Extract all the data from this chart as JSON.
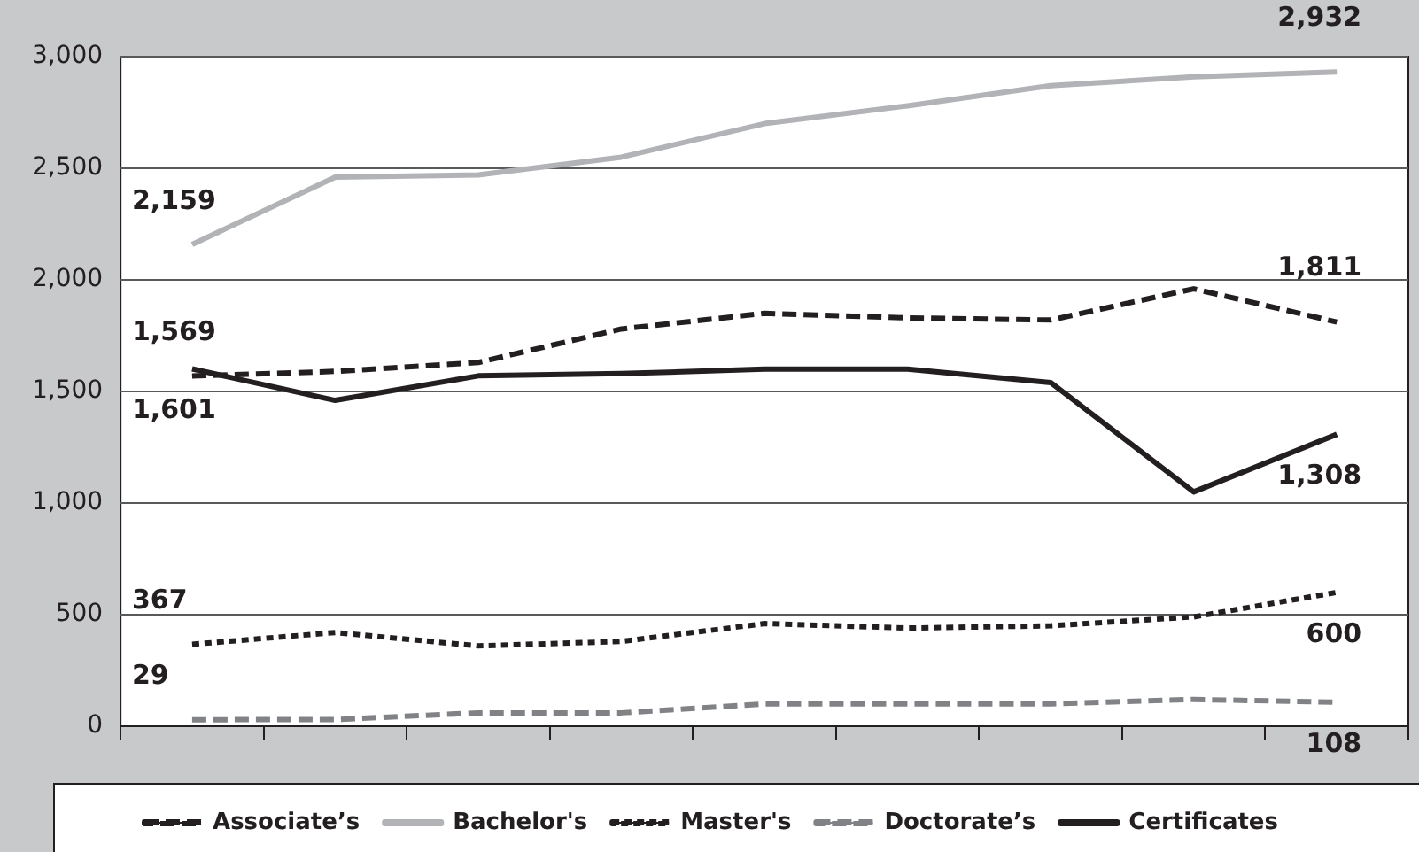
{
  "chart_data": {
    "type": "line",
    "categories": [
      null,
      null,
      null,
      null,
      null,
      null,
      null,
      null,
      null
    ],
    "ylim": [
      0,
      3000
    ],
    "yticks": [
      0,
      {
        "value": 500,
        "label": "500"
      },
      {
        "value": 1000,
        "label": "1,000"
      },
      {
        "value": 1500,
        "label": "1,500"
      },
      {
        "value": 2000,
        "label": "2,000"
      },
      {
        "value": 2500,
        "label": "2,500"
      },
      {
        "value": 3000,
        "label": "3,000"
      }
    ],
    "grid": "y",
    "legend": "bottom",
    "tick_labels": "y",
    "marker": "none",
    "series": [
      {
        "name": "Associate’s",
        "color": "#231f20",
        "line_style": "dashed",
        "values": [
          1569,
          1590,
          1630,
          1780,
          1850,
          1830,
          1820,
          1960,
          1811
        ],
        "value_labels": [
          "1,569",
          null,
          null,
          null,
          null,
          null,
          null,
          null,
          "1,811"
        ]
      },
      {
        "name": "Bachelor's",
        "color": "#b1b3b6",
        "line_style": "solid",
        "values": [
          2159,
          2460,
          2470,
          2550,
          2700,
          2780,
          2870,
          2910,
          2932
        ],
        "value_labels": [
          "2,159",
          null,
          null,
          null,
          null,
          null,
          null,
          null,
          "2,932"
        ]
      },
      {
        "name": "Master's",
        "color": "#231f20",
        "line_style": "dotted",
        "values": [
          367,
          420,
          360,
          380,
          460,
          440,
          450,
          490,
          600
        ],
        "value_labels": [
          "367",
          null,
          null,
          null,
          null,
          null,
          null,
          null,
          "600"
        ]
      },
      {
        "name": "Doctorate’s",
        "color": "#808285",
        "line_style": "dashed",
        "values": [
          29,
          30,
          60,
          60,
          100,
          100,
          100,
          120,
          108
        ],
        "value_labels": [
          "29",
          null,
          null,
          null,
          null,
          null,
          null,
          null,
          "108"
        ]
      },
      {
        "name": "Certificates",
        "color": "#231f20",
        "line_style": "solid",
        "values": [
          1601,
          1460,
          1570,
          1580,
          1600,
          1600,
          1540,
          1050,
          1308
        ],
        "value_labels": [
          "1,601",
          null,
          null,
          null,
          null,
          null,
          null,
          null,
          "1,308"
        ]
      }
    ]
  }
}
